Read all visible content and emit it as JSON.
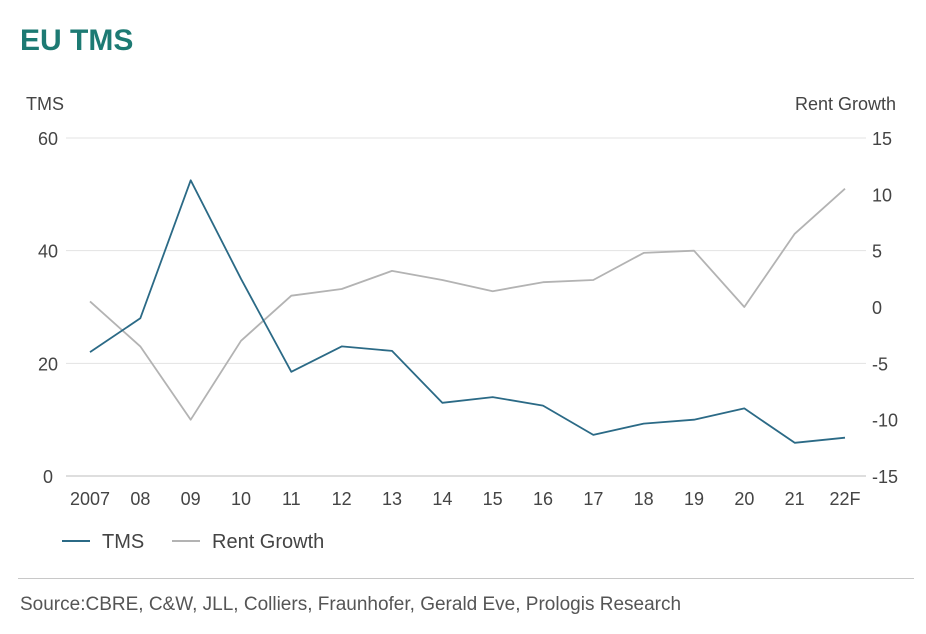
{
  "title": "EU TMS",
  "source": "Source:CBRE, C&W, JLL, Colliers, Fraunhofer, Gerald Eve, Prologis Research",
  "colors": {
    "title": "#1d7a73",
    "tms": "#2b6a86",
    "rent": "#b3b3b3",
    "grid": "#e3e3e3"
  },
  "chart_data": {
    "type": "line",
    "categories": [
      "2007",
      "08",
      "09",
      "10",
      "11",
      "12",
      "13",
      "14",
      "15",
      "16",
      "17",
      "18",
      "19",
      "20",
      "21",
      "22F"
    ],
    "series": [
      {
        "name": "TMS",
        "axis": "left",
        "values": [
          22,
          28,
          52.5,
          35,
          18.5,
          23,
          22.2,
          13,
          14,
          12.5,
          7.3,
          9.3,
          10,
          12,
          5.9,
          6.8
        ]
      },
      {
        "name": "Rent Growth",
        "axis": "right",
        "values": [
          0.5,
          -3.5,
          -10,
          -3,
          1,
          1.6,
          3.2,
          2.4,
          1.4,
          2.2,
          2.4,
          4.8,
          5,
          0,
          6.5,
          10.5
        ]
      }
    ],
    "ylabel_left": "TMS",
    "ylabel_right": "Rent Growth",
    "ylim_left": [
      0,
      60
    ],
    "ylim_right": [
      -15,
      15
    ],
    "yticks_left": [
      "60",
      "40",
      "20",
      "0"
    ],
    "yticks_right": [
      "15",
      "10",
      "5",
      "0",
      "-5",
      "-10",
      "-15"
    ],
    "grid": true,
    "legend_position": "bottom-left"
  }
}
